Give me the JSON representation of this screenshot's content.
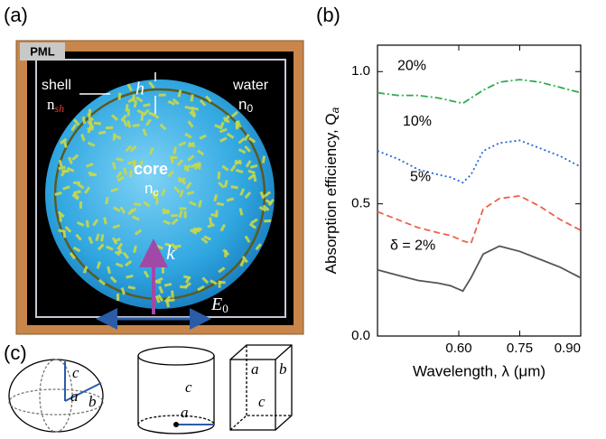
{
  "panel_a": {
    "label": "(a)",
    "pml": "PML",
    "shell": "shell",
    "shell_n": "n",
    "shell_n_sub": "sh",
    "h": "h",
    "water": "water",
    "water_n": "n",
    "water_n_sub": "0",
    "core": "core",
    "core_n": "n",
    "core_n_sub": "c",
    "k": "k",
    "e": "E",
    "e_sub": "0"
  },
  "panel_b": {
    "label": "(b)"
  },
  "chart_data": {
    "type": "line",
    "x_label": "Wavelength, λ (μm)",
    "y_label": "Absorption efficiency, Q",
    "y_label_sub": "a",
    "x": [
      0.4,
      0.45,
      0.5,
      0.55,
      0.58,
      0.61,
      0.63,
      0.66,
      0.7,
      0.75,
      0.8,
      0.85,
      0.9
    ],
    "series": [
      {
        "name": "20%",
        "color": "#2eaa50",
        "values": [
          0.92,
          0.91,
          0.91,
          0.9,
          0.89,
          0.88,
          0.9,
          0.93,
          0.96,
          0.97,
          0.96,
          0.94,
          0.92
        ]
      },
      {
        "name": "10%",
        "color": "#2266dd",
        "values": [
          0.7,
          0.67,
          0.63,
          0.61,
          0.6,
          0.58,
          0.61,
          0.7,
          0.73,
          0.74,
          0.71,
          0.68,
          0.64
        ]
      },
      {
        "name": "5%",
        "color": "#f0604a",
        "values": [
          0.47,
          0.44,
          0.41,
          0.39,
          0.38,
          0.36,
          0.35,
          0.48,
          0.52,
          0.53,
          0.49,
          0.44,
          0.4
        ]
      },
      {
        "name": "δ = 2%",
        "color": "#555555",
        "values": [
          0.25,
          0.23,
          0.21,
          0.2,
          0.19,
          0.17,
          0.22,
          0.31,
          0.34,
          0.32,
          0.29,
          0.26,
          0.22
        ]
      }
    ],
    "xlim": [
      0.4,
      0.9
    ],
    "ylim": [
      0,
      1.1
    ],
    "xticks": [
      {
        "value": 0.6,
        "label": "0.60"
      },
      {
        "value": 0.75,
        "label": "0.75"
      },
      {
        "value": 0.9,
        "label": "0.90"
      }
    ],
    "yticks": [
      {
        "value": 0,
        "label": "0.0"
      },
      {
        "value": 0.5,
        "label": "0.5"
      },
      {
        "value": 1,
        "label": "1.0"
      }
    ],
    "grid": false
  },
  "panel_c": {
    "label": "(c)",
    "ellipsoid": [
      "a",
      "b",
      "c"
    ],
    "cylinder": [
      "c",
      "a"
    ],
    "box": [
      "a",
      "b",
      "c"
    ]
  }
}
